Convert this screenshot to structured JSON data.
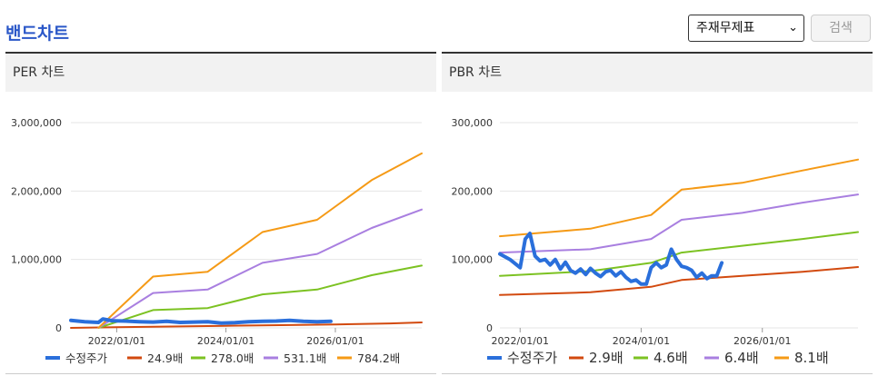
{
  "page": {
    "title": "밴드차트"
  },
  "controls": {
    "select_value": "주재무제표",
    "search_label": "검색"
  },
  "colors": {
    "series": [
      "#2a6fdb",
      "#d24a0f",
      "#7cc222",
      "#a97fe0",
      "#f59a16"
    ],
    "grid": "#e6e6e6",
    "axis_text": "#333333"
  },
  "chart_data": [
    {
      "type": "line",
      "title": "PER 차트",
      "x_ticks": [
        "2022/01/01",
        "2024/01/01",
        "2026/01/01"
      ],
      "y_ticks": [
        "0",
        "1,000,000",
        "2,000,000",
        "3,000,000"
      ],
      "ylim": [
        0,
        3000000
      ],
      "xlim": [
        "2021/03/01",
        "2027/08/01"
      ],
      "series": [
        {
          "name": "수정주가",
          "x": [
            "2021/03/01",
            "2021/06/01",
            "2021/09/01",
            "2021/10/01",
            "2021/12/01",
            "2022/03/01",
            "2022/06/01",
            "2022/09/01",
            "2022/12/01",
            "2023/03/01",
            "2023/06/01",
            "2023/09/01",
            "2023/12/01",
            "2024/03/01",
            "2024/06/01",
            "2024/09/01",
            "2024/12/01",
            "2025/03/01",
            "2025/06/01",
            "2025/09/01",
            "2025/12/01"
          ],
          "values": [
            110000,
            90000,
            80000,
            130000,
            105000,
            100000,
            90000,
            85000,
            95000,
            80000,
            85000,
            90000,
            70000,
            75000,
            90000,
            95000,
            100000,
            110000,
            95000,
            90000,
            95000
          ]
        },
        {
          "name": "24.9배",
          "x": [
            "2021/03/01",
            "2022/01/01",
            "2023/01/01",
            "2024/01/01",
            "2025/01/01",
            "2026/01/01",
            "2027/01/01",
            "2027/08/01"
          ],
          "values": [
            0,
            10000,
            20000,
            30000,
            40000,
            50000,
            65000,
            80000
          ]
        },
        {
          "name": "278.0배",
          "x": [
            "2021/09/01",
            "2022/09/01",
            "2023/09/01",
            "2024/09/01",
            "2025/09/01",
            "2026/09/01",
            "2027/08/01"
          ],
          "values": [
            0,
            260000,
            290000,
            490000,
            560000,
            770000,
            910000
          ]
        },
        {
          "name": "531.1배",
          "x": [
            "2021/09/01",
            "2022/09/01",
            "2023/09/01",
            "2024/09/01",
            "2025/09/01",
            "2026/09/01",
            "2027/08/01"
          ],
          "values": [
            0,
            510000,
            560000,
            950000,
            1080000,
            1460000,
            1730000
          ]
        },
        {
          "name": "784.2배",
          "x": [
            "2021/09/01",
            "2022/09/01",
            "2023/09/01",
            "2024/09/01",
            "2025/09/01",
            "2026/09/01",
            "2027/08/01"
          ],
          "values": [
            0,
            750000,
            820000,
            1400000,
            1580000,
            2160000,
            2550000
          ]
        }
      ]
    },
    {
      "type": "line",
      "title": "PBR 차트",
      "x_ticks": [
        "2022/01/01",
        "2024/01/01",
        "2026/01/01"
      ],
      "y_ticks": [
        "0",
        "100,000",
        "200,000",
        "300,000"
      ],
      "ylim": [
        0,
        300000
      ],
      "xlim": [
        "2021/09/01",
        "2027/08/01"
      ],
      "series": [
        {
          "name": "수정주가",
          "x": [
            "2021/09/01",
            "2021/11/01",
            "2022/01/01",
            "2022/02/01",
            "2022/03/01",
            "2022/04/01",
            "2022/05/01",
            "2022/06/01",
            "2022/07/01",
            "2022/08/01",
            "2022/09/01",
            "2022/10/01",
            "2022/11/01",
            "2022/12/01",
            "2023/01/01",
            "2023/02/01",
            "2023/03/01",
            "2023/04/01",
            "2023/05/01",
            "2023/06/01",
            "2023/07/01",
            "2023/08/01",
            "2023/09/01",
            "2023/10/01",
            "2023/11/01",
            "2023/12/01",
            "2024/01/01",
            "2024/02/01",
            "2024/03/01",
            "2024/04/01",
            "2024/05/01",
            "2024/06/01",
            "2024/07/01",
            "2024/08/01",
            "2024/09/01",
            "2024/10/01",
            "2024/11/01",
            "2024/12/01",
            "2025/01/01",
            "2025/02/01",
            "2025/03/01",
            "2025/04/01",
            "2025/05/01"
          ],
          "values": [
            108000,
            100000,
            88000,
            130000,
            138000,
            105000,
            98000,
            100000,
            92000,
            100000,
            86000,
            96000,
            84000,
            80000,
            86000,
            78000,
            87000,
            80000,
            75000,
            82000,
            84000,
            76000,
            82000,
            74000,
            68000,
            70000,
            64000,
            64000,
            88000,
            95000,
            88000,
            92000,
            115000,
            100000,
            90000,
            88000,
            84000,
            74000,
            80000,
            72000,
            76000,
            76000,
            95000
          ]
        },
        {
          "name": "2.9배",
          "x": [
            "2021/09/01",
            "2023/03/01",
            "2024/03/01",
            "2024/09/01",
            "2025/09/01",
            "2026/09/01",
            "2027/08/01"
          ],
          "values": [
            48000,
            52000,
            60000,
            70000,
            76000,
            82000,
            89000
          ]
        },
        {
          "name": "4.6배",
          "x": [
            "2021/09/01",
            "2023/03/01",
            "2024/03/01",
            "2024/09/01",
            "2025/09/01",
            "2026/09/01",
            "2027/08/01"
          ],
          "values": [
            76000,
            83000,
            95000,
            110000,
            120000,
            130000,
            140000
          ]
        },
        {
          "name": "6.4배",
          "x": [
            "2021/09/01",
            "2023/03/01",
            "2024/03/01",
            "2024/09/01",
            "2025/09/01",
            "2026/09/01",
            "2027/08/01"
          ],
          "values": [
            110000,
            115000,
            130000,
            158000,
            168000,
            183000,
            195000
          ]
        },
        {
          "name": "8.1배",
          "x": [
            "2021/09/01",
            "2023/03/01",
            "2024/03/01",
            "2024/09/01",
            "2025/09/01",
            "2026/09/01",
            "2027/08/01"
          ],
          "values": [
            134000,
            145000,
            165000,
            202000,
            212000,
            230000,
            246000
          ]
        }
      ]
    }
  ]
}
